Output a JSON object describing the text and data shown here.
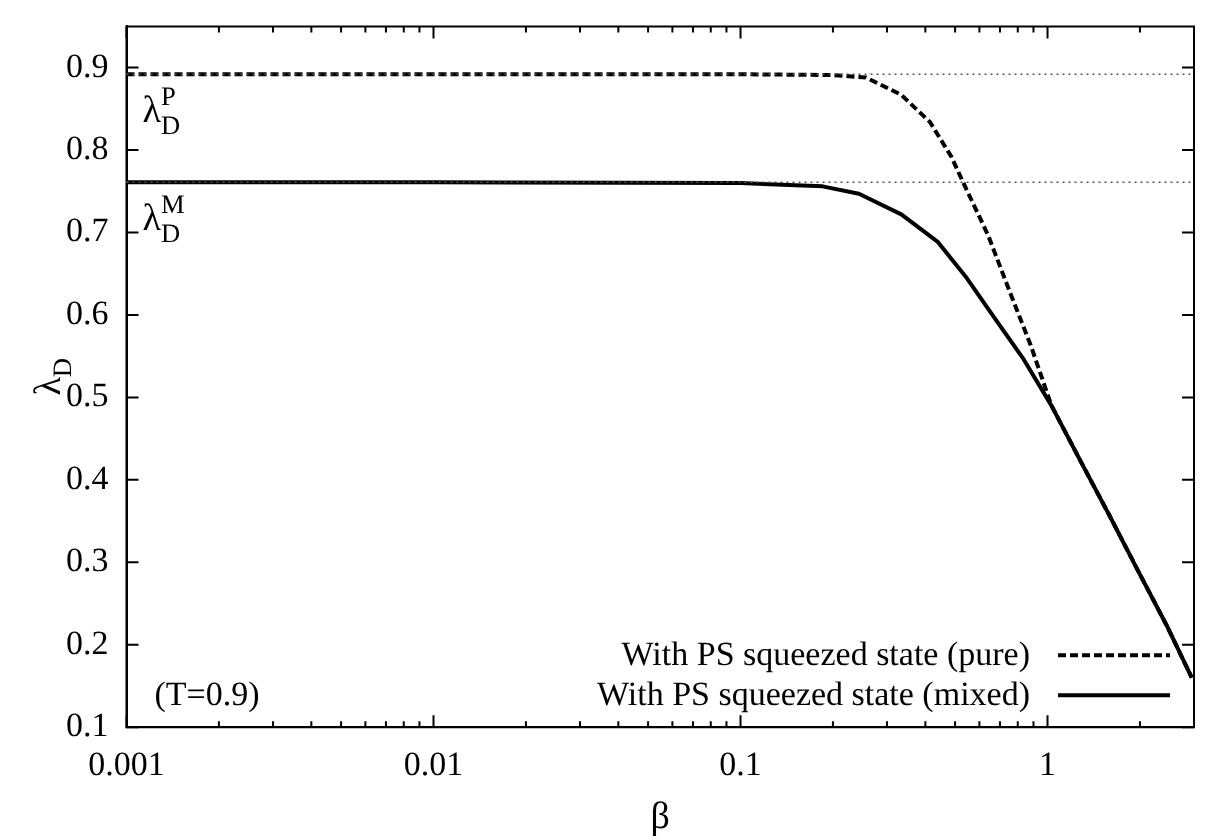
{
  "chart_data": {
    "type": "line",
    "xlabel": "β",
    "ylabel": "λ$_{D}$",
    "log": "x",
    "xlim": [
      0.001,
      3
    ],
    "xticks": [
      0.001,
      {
        "value": 0.002,
        "label": null
      },
      {
        "value": 0.003,
        "label": null
      },
      {
        "value": 0.004,
        "label": null
      },
      {
        "value": 0.005,
        "label": null
      },
      {
        "value": 0.006,
        "label": null
      },
      {
        "value": 0.007,
        "label": null
      },
      {
        "value": 0.008,
        "label": null
      },
      {
        "value": 0.009,
        "label": null
      },
      0.01,
      {
        "value": 0.02,
        "label": null
      },
      {
        "value": 0.03,
        "label": null
      },
      {
        "value": 0.04,
        "label": null
      },
      {
        "value": 0.05,
        "label": null
      },
      {
        "value": 0.06,
        "label": null
      },
      {
        "value": 0.07,
        "label": null
      },
      {
        "value": 0.08,
        "label": null
      },
      {
        "value": 0.09,
        "label": null
      },
      0.1,
      {
        "value": 0.2,
        "label": null
      },
      {
        "value": 0.3,
        "label": null
      },
      {
        "value": 0.4,
        "label": null
      },
      {
        "value": 0.5,
        "label": null
      },
      {
        "value": 0.6,
        "label": null
      },
      {
        "value": 0.7,
        "label": null
      },
      {
        "value": 0.8,
        "label": null
      },
      {
        "value": 0.9,
        "label": null
      },
      1,
      {
        "value": 2,
        "label": null
      },
      {
        "value": 3,
        "label": null
      }
    ],
    "ylim": [
      0.1,
      0.95
    ],
    "yticks": [
      0.1,
      0.2,
      0.3,
      0.4,
      0.5,
      0.6,
      0.7,
      0.8,
      0.9
    ],
    "grid": false,
    "legend": "bottom right",
    "marker": "none",
    "series": [
      {
        "name": "With PS squeezed state (pure)",
        "color": "#000000",
        "line_style": "dashed",
        "x": [
          0.001,
          0.01,
          0.1,
          0.2,
          0.256,
          0.334,
          0.414,
          0.486,
          0.54,
          0.64,
          0.75,
          0.88,
          1.03,
          1.28,
          1.59,
          1.97,
          2.44,
          2.95
        ],
        "values": [
          0.892,
          0.892,
          0.892,
          0.891,
          0.888,
          0.867,
          0.834,
          0.792,
          0.755,
          0.697,
          0.63,
          0.564,
          0.49,
          0.423,
          0.357,
          0.29,
          0.224,
          0.16
        ]
      },
      {
        "name": "With PS squeezed state (mixed)",
        "color": "#000000",
        "line_style": "solid",
        "x": [
          0.001,
          0.01,
          0.1,
          0.185,
          0.243,
          0.334,
          0.438,
          0.54,
          0.67,
          0.83,
          1.03,
          1.28,
          1.59,
          1.97,
          2.44,
          2.95
        ],
        "values": [
          0.761,
          0.761,
          0.76,
          0.756,
          0.747,
          0.722,
          0.689,
          0.647,
          0.597,
          0.548,
          0.49,
          0.423,
          0.357,
          0.29,
          0.224,
          0.16
        ]
      }
    ],
    "ref_lines": [
      {
        "axis": "y",
        "value": 0.892,
        "label": "λ$_{D}$$^{P}$",
        "color": "#555555",
        "line_style": "dotted"
      },
      {
        "axis": "y",
        "value": 0.761,
        "label": "λ$_{D}$$^{M}$",
        "color": "#555555",
        "line_style": "dotted"
      }
    ],
    "annotations": [
      "(T=0.9)"
    ]
  }
}
